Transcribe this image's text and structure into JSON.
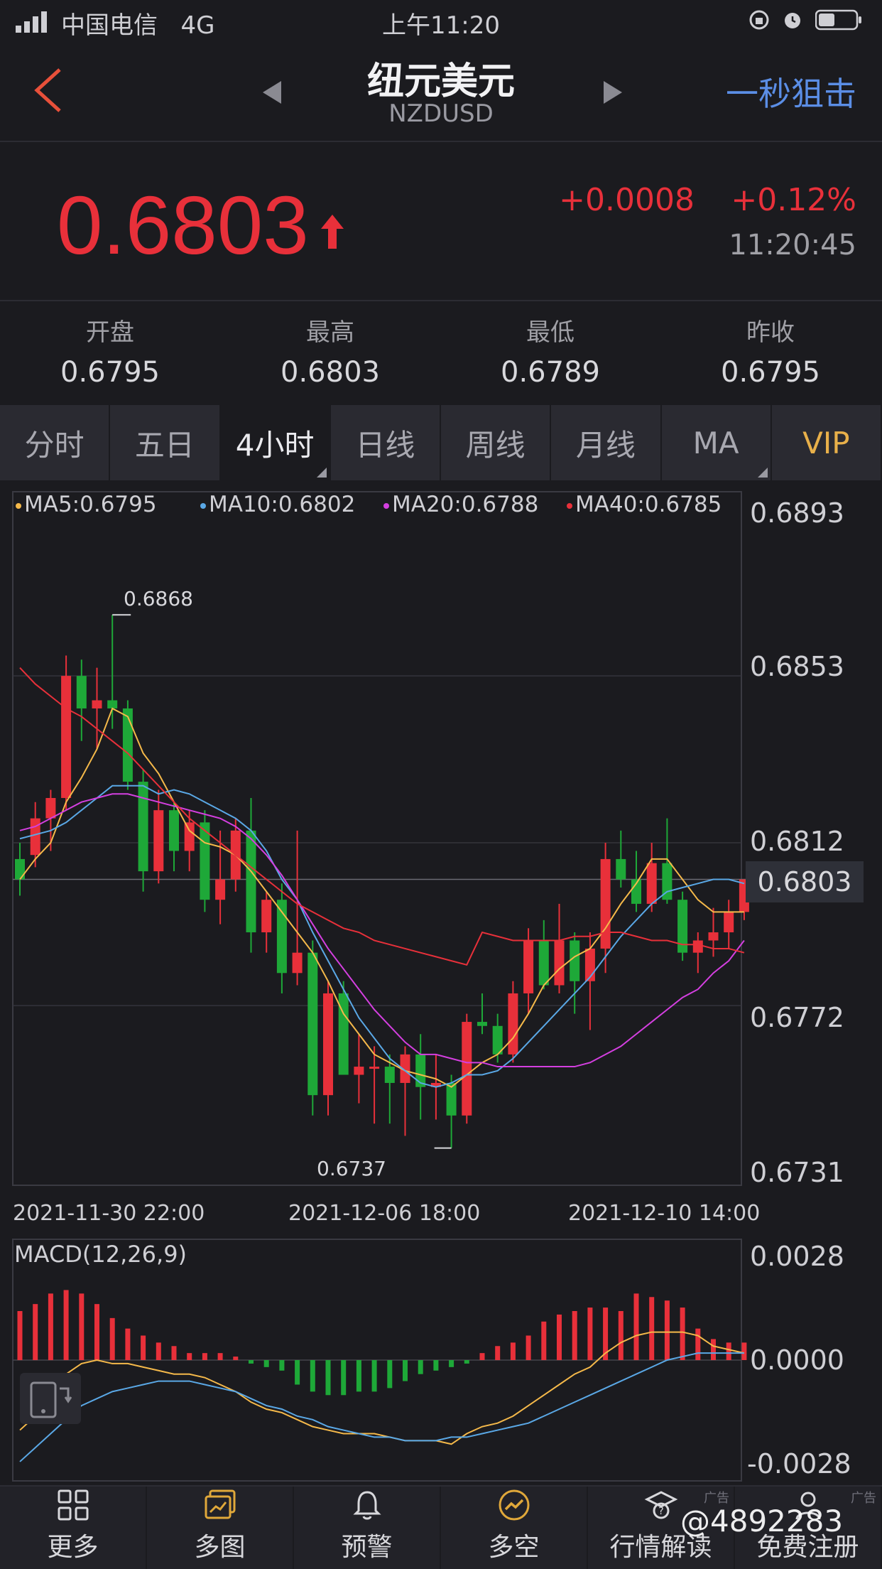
{
  "status_bar": {
    "carrier": "中国电信",
    "network": "4G",
    "time": "上午11:20"
  },
  "header": {
    "title": "纽元美元",
    "symbol": "NZDUSD",
    "action": "一秒狙击"
  },
  "quote": {
    "price": "0.6803",
    "change": "+0.0008",
    "change_pct": "+0.12%",
    "time": "11:20:45",
    "up_color": "#e8303a",
    "down_color": "#1ea838"
  },
  "stats": [
    {
      "label": "开盘",
      "value": "0.6795"
    },
    {
      "label": "最高",
      "value": "0.6803"
    },
    {
      "label": "最低",
      "value": "0.6789"
    },
    {
      "label": "昨收",
      "value": "0.6795"
    }
  ],
  "tabs": [
    "分时",
    "五日",
    "4小时",
    "日线",
    "周线",
    "月线",
    "MA",
    "VIP"
  ],
  "active_tab": "4小时",
  "legend": [
    "MA5:0.6795",
    "MA10:0.6802",
    "MA20:0.6788",
    "MA40:0.6785"
  ],
  "price_axis": [
    "0.6893",
    "0.6853",
    "0.6812",
    "0.6772",
    "0.6731"
  ],
  "current_price_label": "0.6803",
  "high_label": "0.6868",
  "low_label": "0.6737",
  "x_axis": [
    "2021-11-30 22:00",
    "2021-12-06 18:00",
    "2021-12-10 14:00"
  ],
  "macd": {
    "title": "MACD(12,26,9)",
    "axis": [
      "0.0028",
      "0.0000",
      "-0.0028"
    ]
  },
  "chart_data": {
    "type": "candlestick",
    "ylim": [
      0.6731,
      0.6893
    ],
    "candles": [
      [
        0.6808,
        0.6812,
        0.6799,
        0.6803
      ],
      [
        0.6809,
        0.6822,
        0.6806,
        0.6818
      ],
      [
        0.6818,
        0.6825,
        0.681,
        0.6823
      ],
      [
        0.6823,
        0.6858,
        0.682,
        0.6853
      ],
      [
        0.6853,
        0.6857,
        0.6837,
        0.6845
      ],
      [
        0.6845,
        0.6855,
        0.6835,
        0.6847
      ],
      [
        0.6847,
        0.6868,
        0.684,
        0.6845
      ],
      [
        0.6845,
        0.6847,
        0.6825,
        0.6827
      ],
      [
        0.6827,
        0.683,
        0.68,
        0.6805
      ],
      [
        0.6805,
        0.6825,
        0.6802,
        0.682
      ],
      [
        0.682,
        0.6822,
        0.6805,
        0.681
      ],
      [
        0.681,
        0.682,
        0.6805,
        0.6817
      ],
      [
        0.6817,
        0.682,
        0.6795,
        0.6798
      ],
      [
        0.6798,
        0.6815,
        0.6792,
        0.6803
      ],
      [
        0.6803,
        0.6818,
        0.68,
        0.6815
      ],
      [
        0.6815,
        0.6823,
        0.6785,
        0.679
      ],
      [
        0.679,
        0.68,
        0.6785,
        0.6798
      ],
      [
        0.6798,
        0.6802,
        0.6775,
        0.678
      ],
      [
        0.678,
        0.6815,
        0.6777,
        0.6785
      ],
      [
        0.6785,
        0.6788,
        0.6745,
        0.675
      ],
      [
        0.675,
        0.6778,
        0.6745,
        0.6775
      ],
      [
        0.6775,
        0.6778,
        0.6755,
        0.6755
      ],
      [
        0.6755,
        0.6765,
        0.6748,
        0.6757
      ],
      [
        0.6757,
        0.6762,
        0.6743,
        0.6757
      ],
      [
        0.6757,
        0.676,
        0.6743,
        0.6753
      ],
      [
        0.6753,
        0.6762,
        0.674,
        0.676
      ],
      [
        0.676,
        0.6765,
        0.6744,
        0.6752
      ],
      [
        0.6752,
        0.676,
        0.6744,
        0.6753
      ],
      [
        0.6753,
        0.6755,
        0.6737,
        0.6745
      ],
      [
        0.6745,
        0.677,
        0.6743,
        0.6768
      ],
      [
        0.6768,
        0.6775,
        0.6765,
        0.6767
      ],
      [
        0.6767,
        0.677,
        0.6758,
        0.676
      ],
      [
        0.676,
        0.6778,
        0.6758,
        0.6775
      ],
      [
        0.6775,
        0.6791,
        0.677,
        0.6788
      ],
      [
        0.6788,
        0.6793,
        0.6776,
        0.6777
      ],
      [
        0.6777,
        0.6797,
        0.6775,
        0.6788
      ],
      [
        0.6788,
        0.679,
        0.677,
        0.6778
      ],
      [
        0.6778,
        0.679,
        0.6766,
        0.6786
      ],
      [
        0.6786,
        0.6812,
        0.678,
        0.6808
      ],
      [
        0.6808,
        0.6815,
        0.6801,
        0.6803
      ],
      [
        0.6803,
        0.681,
        0.6795,
        0.6797
      ],
      [
        0.6797,
        0.6812,
        0.6795,
        0.6807
      ],
      [
        0.6807,
        0.6818,
        0.6797,
        0.6798
      ],
      [
        0.6798,
        0.68,
        0.6783,
        0.6785
      ],
      [
        0.6785,
        0.679,
        0.678,
        0.6788
      ],
      [
        0.6788,
        0.6796,
        0.6784,
        0.679
      ],
      [
        0.679,
        0.6798,
        0.6786,
        0.6795
      ],
      [
        0.6795,
        0.6803,
        0.6793,
        0.6803
      ]
    ],
    "ma_series": [
      {
        "name": "MA5",
        "color": "#f5b94a",
        "values": [
          0.6803,
          0.6808,
          0.6812,
          0.6822,
          0.6828,
          0.6835,
          0.6845,
          0.6843,
          0.6834,
          0.6829,
          0.6822,
          0.6815,
          0.6812,
          0.6811,
          0.6809,
          0.6805,
          0.68,
          0.6795,
          0.679,
          0.6785,
          0.6778,
          0.677,
          0.6765,
          0.676,
          0.6758,
          0.6756,
          0.6755,
          0.6754,
          0.6752,
          0.6755,
          0.6758,
          0.676,
          0.6764,
          0.677,
          0.6777,
          0.6781,
          0.6784,
          0.6786,
          0.6791,
          0.6797,
          0.6802,
          0.6808,
          0.6808,
          0.6803,
          0.6798,
          0.6795,
          0.6795,
          0.6795
        ]
      },
      {
        "name": "MA10",
        "color": "#5aa8e6",
        "values": [
          0.6813,
          0.6814,
          0.6815,
          0.6817,
          0.682,
          0.6823,
          0.6826,
          0.6826,
          0.6826,
          0.6824,
          0.6825,
          0.6824,
          0.6822,
          0.682,
          0.6818,
          0.6815,
          0.681,
          0.6803,
          0.6798,
          0.679,
          0.6783,
          0.6776,
          0.6769,
          0.6764,
          0.6759,
          0.6756,
          0.6753,
          0.6752,
          0.6753,
          0.6755,
          0.6755,
          0.6756,
          0.6759,
          0.6763,
          0.6767,
          0.6771,
          0.6775,
          0.6779,
          0.6784,
          0.6789,
          0.6793,
          0.6797,
          0.68,
          0.6801,
          0.6802,
          0.6803,
          0.6803,
          0.6802
        ]
      },
      {
        "name": "MA20",
        "color": "#d43fe0",
        "values": [
          0.6815,
          0.6816,
          0.6818,
          0.682,
          0.6822,
          0.6823,
          0.6824,
          0.6824,
          0.6823,
          0.6822,
          0.6821,
          0.682,
          0.6819,
          0.6818,
          0.6816,
          0.6813,
          0.6809,
          0.6804,
          0.6798,
          0.6792,
          0.6786,
          0.6781,
          0.6776,
          0.6771,
          0.6767,
          0.6763,
          0.676,
          0.676,
          0.6759,
          0.6758,
          0.6758,
          0.6757,
          0.6757,
          0.6757,
          0.6757,
          0.6757,
          0.6757,
          0.6758,
          0.676,
          0.6762,
          0.6765,
          0.6768,
          0.6771,
          0.6774,
          0.6776,
          0.678,
          0.6783,
          0.6788
        ]
      },
      {
        "name": "MA40",
        "color": "#e8303a",
        "values": [
          0.6855,
          0.6851,
          0.6848,
          0.6845,
          0.6843,
          0.684,
          0.6837,
          0.6834,
          0.683,
          0.6826,
          0.6822,
          0.6818,
          0.6815,
          0.6812,
          0.6809,
          0.6806,
          0.6803,
          0.68,
          0.6797,
          0.6795,
          0.6793,
          0.6791,
          0.679,
          0.6788,
          0.6787,
          0.6786,
          0.6785,
          0.6784,
          0.6783,
          0.6782,
          0.679,
          0.6789,
          0.6788,
          0.6788,
          0.6788,
          0.6788,
          0.6789,
          0.6789,
          0.679,
          0.679,
          0.6789,
          0.6788,
          0.6788,
          0.6787,
          0.6787,
          0.6786,
          0.6786,
          0.6785
        ]
      }
    ],
    "macd_hist": [
      0.0014,
      0.0016,
      0.0019,
      0.002,
      0.0019,
      0.0016,
      0.0012,
      0.0009,
      0.0007,
      0.0005,
      0.0004,
      0.0002,
      0.0002,
      0.0002,
      0.0001,
      -0.0001,
      -0.0002,
      -0.0003,
      -0.0007,
      -0.0009,
      -0.001,
      -0.001,
      -0.0009,
      -0.0009,
      -0.0008,
      -0.0006,
      -0.0004,
      -0.0003,
      -0.0002,
      -0.0001,
      0.0002,
      0.0004,
      0.0005,
      0.0007,
      0.0011,
      0.0013,
      0.0014,
      0.0015,
      0.0015,
      0.0014,
      0.0019,
      0.0018,
      0.0017,
      0.0015,
      0.0009,
      0.0006,
      0.0005,
      0.0005
    ],
    "macd_dif": [
      -0.002,
      -0.0016,
      -0.001,
      -0.0004,
      -0.0001,
      0.0,
      -0.0001,
      -0.0001,
      -0.0002,
      -0.0003,
      -0.0004,
      -0.0004,
      -0.0005,
      -0.0007,
      -0.0009,
      -0.0012,
      -0.0014,
      -0.0015,
      -0.0017,
      -0.0019,
      -0.002,
      -0.0021,
      -0.0021,
      -0.0021,
      -0.0022,
      -0.0023,
      -0.0023,
      -0.0023,
      -0.0024,
      -0.0021,
      -0.0019,
      -0.0018,
      -0.0016,
      -0.0013,
      -0.001,
      -0.0007,
      -0.0004,
      -0.0002,
      0.0002,
      0.0005,
      0.0007,
      0.0008,
      0.0008,
      0.0008,
      0.0007,
      0.0004,
      0.0003,
      0.0002
    ],
    "macd_dea": [
      -0.0029,
      -0.0025,
      -0.0021,
      -0.0017,
      -0.0013,
      -0.0011,
      -0.0009,
      -0.0008,
      -0.0007,
      -0.0006,
      -0.0006,
      -0.0006,
      -0.0007,
      -0.0008,
      -0.0009,
      -0.0011,
      -0.0013,
      -0.0014,
      -0.0016,
      -0.0017,
      -0.0019,
      -0.002,
      -0.0021,
      -0.0022,
      -0.0022,
      -0.0023,
      -0.0023,
      -0.0023,
      -0.0022,
      -0.0022,
      -0.0021,
      -0.002,
      -0.0019,
      -0.0018,
      -0.0016,
      -0.0014,
      -0.0012,
      -0.001,
      -0.0008,
      -0.0006,
      -0.0004,
      -0.0002,
      0.0,
      0.0001,
      0.0002,
      0.0002,
      0.0002,
      0.0002
    ]
  },
  "bottom_nav": [
    {
      "label": "更多",
      "icon": "grid-icon"
    },
    {
      "label": "多图",
      "icon": "multi-chart-icon"
    },
    {
      "label": "预警",
      "icon": "bell-icon"
    },
    {
      "label": "多空",
      "icon": "trend-icon"
    },
    {
      "label": "行情解读",
      "icon": "analysis-icon",
      "ad": "广告"
    },
    {
      "label": "免费注册",
      "icon": "register-icon",
      "ad": "广告"
    }
  ],
  "watermark": "@4892283"
}
